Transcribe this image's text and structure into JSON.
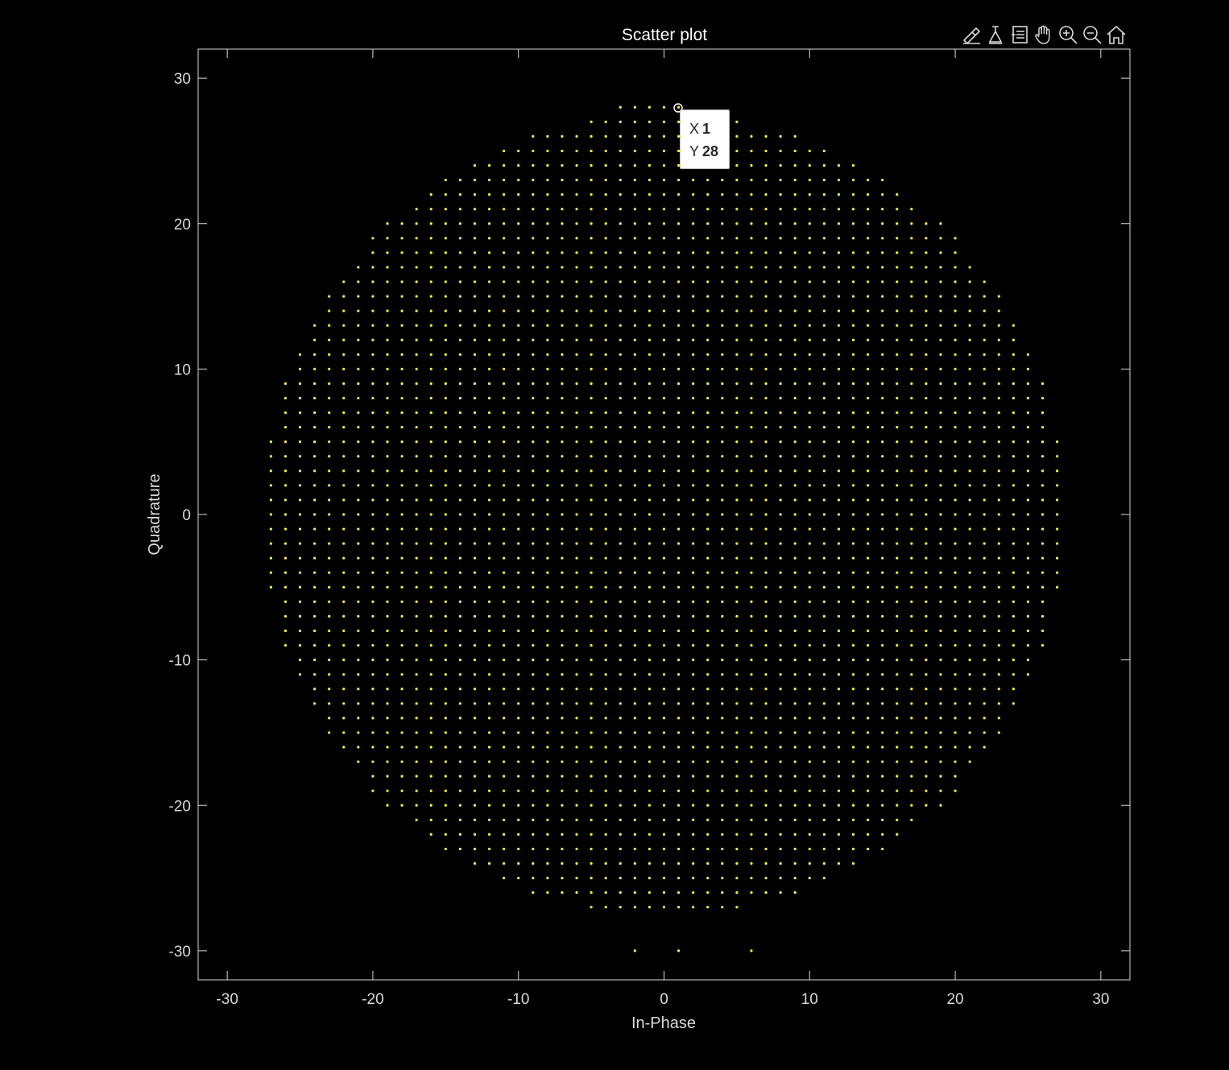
{
  "chart_data": {
    "type": "scatter",
    "title": "Scatter plot",
    "xlabel": "In-Phase",
    "ylabel": "Quadrature",
    "xlim": [
      -32,
      32
    ],
    "ylim": [
      -32,
      32
    ],
    "xticks": [
      -30,
      -20,
      -10,
      0,
      10,
      20,
      30
    ],
    "yticks": [
      -30,
      -20,
      -10,
      0,
      10,
      20,
      30
    ],
    "xtick_labels": [
      "-30",
      "-20",
      "-10",
      "0",
      "10",
      "20",
      "30"
    ],
    "ytick_labels": [
      "-30",
      "-20",
      "-10",
      "0",
      "10",
      "20",
      "30"
    ],
    "grid": false,
    "marker_color": "#ffff00",
    "background_color": "#000000",
    "axis_color": "#d9d9d9",
    "description_points": "integer lattice points (x, y) with x^2 + y^2 <= radius^2",
    "radius": 27.6,
    "extra_points": [
      [
        -3,
        28
      ],
      [
        -2,
        28
      ],
      [
        -1,
        28
      ],
      [
        0,
        28
      ],
      [
        1,
        28
      ],
      [
        27,
        2
      ],
      [
        -2,
        -30
      ],
      [
        1,
        -30
      ],
      [
        6,
        -30
      ]
    ],
    "selected_point": {
      "x": 1,
      "y": 28
    }
  },
  "datatip": {
    "x_label": "X",
    "x_value": "1",
    "y_label": "Y",
    "y_value": "28"
  },
  "toolbar": {
    "icons": [
      "brush-icon",
      "data-cursor-icon",
      "link-icon",
      "pan-hand-icon",
      "zoom-in-icon",
      "zoom-out-icon",
      "home-icon"
    ]
  }
}
